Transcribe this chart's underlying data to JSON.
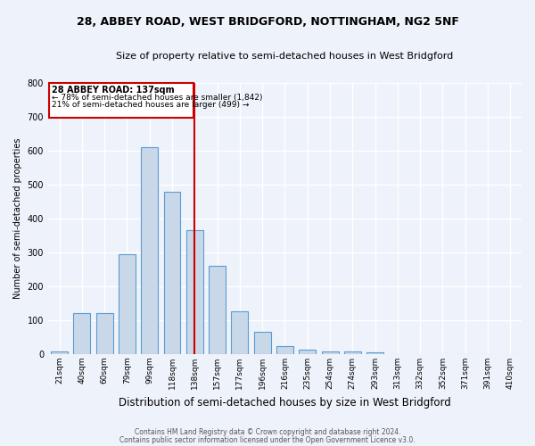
{
  "title1": "28, ABBEY ROAD, WEST BRIDGFORD, NOTTINGHAM, NG2 5NF",
  "title2": "Size of property relative to semi-detached houses in West Bridgford",
  "xlabel": "Distribution of semi-detached houses by size in West Bridgford",
  "ylabel": "Number of semi-detached properties",
  "footnote1": "Contains HM Land Registry data © Crown copyright and database right 2024.",
  "footnote2": "Contains public sector information licensed under the Open Government Licence v3.0.",
  "categories": [
    "21sqm",
    "40sqm",
    "60sqm",
    "79sqm",
    "99sqm",
    "118sqm",
    "138sqm",
    "157sqm",
    "177sqm",
    "196sqm",
    "216sqm",
    "235sqm",
    "254sqm",
    "274sqm",
    "293sqm",
    "313sqm",
    "332sqm",
    "352sqm",
    "371sqm",
    "391sqm",
    "410sqm"
  ],
  "values": [
    8,
    120,
    120,
    295,
    610,
    480,
    365,
    260,
    127,
    65,
    25,
    12,
    8,
    8,
    5,
    0,
    0,
    0,
    0,
    0,
    0
  ],
  "bar_color": "#c8d8e8",
  "bar_edge_color": "#5b9bd5",
  "annotation_label": "28 ABBEY ROAD: 137sqm",
  "annotation_smaller": "← 78% of semi-detached houses are smaller (1,842)",
  "annotation_larger": "21% of semi-detached houses are larger (499) →",
  "ylim": [
    0,
    800
  ],
  "yticks": [
    0,
    100,
    200,
    300,
    400,
    500,
    600,
    700,
    800
  ],
  "vline_color": "#cc0000",
  "box_edge_color": "#cc0000",
  "background_color": "#eef2fa",
  "grid_color": "#ffffff"
}
